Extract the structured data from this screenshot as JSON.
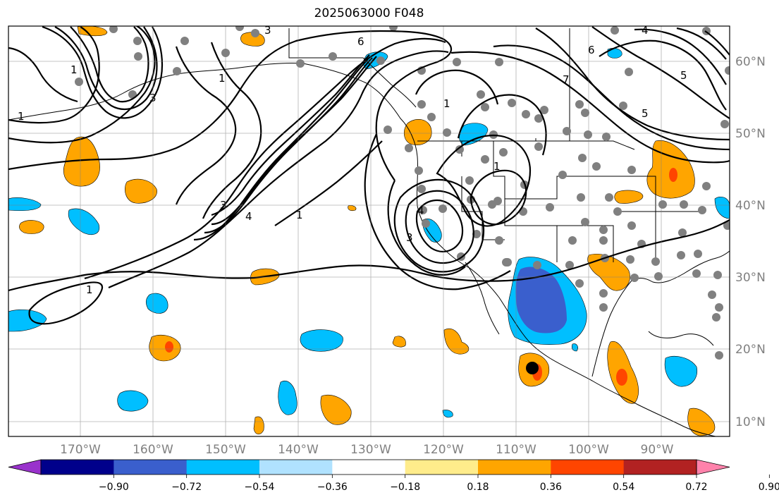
{
  "title": "2025063000 F048",
  "lon_labels": [
    "170°W",
    "160°W",
    "150°W",
    "140°W",
    "130°W",
    "120°W",
    "110°W",
    "100°W",
    "90°W"
  ],
  "lat_labels": [
    "60°N",
    "50°N",
    "40°N",
    "30°N",
    "20°N",
    "10°N"
  ],
  "colorbar": {
    "ticks": [
      "−0.90",
      "−0.72",
      "−0.54",
      "−0.36",
      "−0.18",
      "0.18",
      "0.36",
      "0.54",
      "0.72",
      "0.90"
    ],
    "colors": [
      "#9932cc",
      "#00008b",
      "#3a5fcd",
      "#00bfff",
      "#b0e2ff",
      "#ffffff",
      "#ffec8b",
      "#ffa500",
      "#ff4500",
      "#b22222",
      "#ff82ab"
    ]
  },
  "contour_labels": [
    "3",
    "6",
    "7",
    "1",
    "1",
    "4",
    "5",
    "6",
    "1",
    "1",
    "3",
    "4",
    "1",
    "5",
    "3",
    "4",
    "3",
    "1",
    "1"
  ],
  "colors": {
    "orange": "#ffa500",
    "red_orange": "#ff4500",
    "sky_blue": "#00bfff",
    "royal_blue": "#3a5fcd",
    "dot_gray": "#808080"
  }
}
